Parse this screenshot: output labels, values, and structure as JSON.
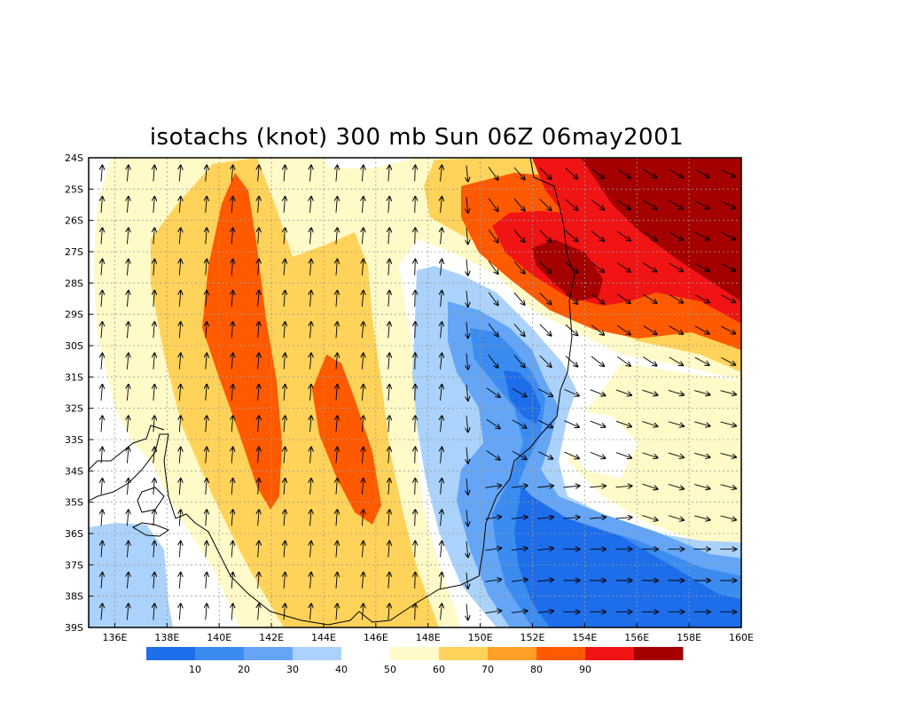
{
  "title": "isotachs (knot) 300 mb Sun 06Z 06may2001",
  "map": {
    "lon_range": [
      135,
      160
    ],
    "lat_range": [
      -39,
      -24
    ],
    "lat_labels": [
      "24S",
      "25S",
      "26S",
      "27S",
      "28S",
      "29S",
      "30S",
      "31S",
      "32S",
      "33S",
      "34S",
      "35S",
      "36S",
      "37S",
      "38S",
      "39S"
    ],
    "lon_labels": [
      "136E",
      "138E",
      "140E",
      "142E",
      "144E",
      "146E",
      "148E",
      "150E",
      "152E",
      "154E",
      "156E",
      "158E",
      "160E"
    ],
    "grid": true
  },
  "colorbar": {
    "colors": [
      "#1e6eeb",
      "#3c8cf0",
      "#64a5f5",
      "#aad2fa",
      "#ffffff",
      "#fffac8",
      "#ffd25a",
      "#ffa028",
      "#ff5a00",
      "#f01414",
      "#a50000"
    ],
    "labels": [
      "10",
      "20",
      "30",
      "40",
      "50",
      "60",
      "70",
      "80",
      "90"
    ]
  },
  "legend": {
    "levels": [
      10,
      20,
      30,
      40,
      50,
      60,
      70,
      80,
      90
    ]
  }
}
